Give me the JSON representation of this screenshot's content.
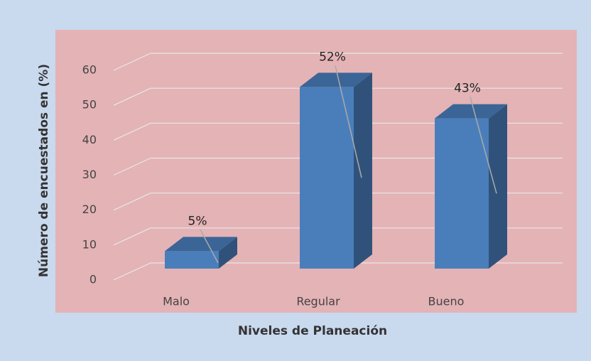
{
  "chart_data": {
    "type": "bar3d",
    "x_label": "Niveles de Planeación",
    "y_label": "Número de encuestados en (%)",
    "categories": [
      "Malo",
      "Regular",
      "Bueno"
    ],
    "values": [
      5,
      52,
      43
    ],
    "value_labels": [
      "5%",
      "52%",
      "43%"
    ],
    "color": "#4a7ebb",
    "ylim": [
      0,
      60
    ],
    "yticks": [
      0,
      10,
      20,
      30,
      40,
      50,
      60
    ],
    "grid": true
  }
}
